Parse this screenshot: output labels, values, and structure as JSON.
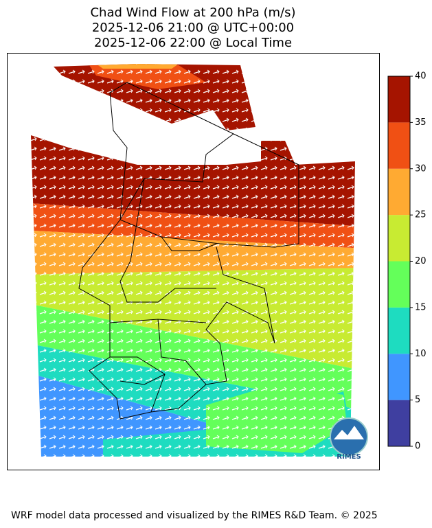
{
  "map": {
    "title": [
      "Chad Wind Flow at 200 hPa (m/s)",
      "2025-12-06 21:00 @ UTC+00:00",
      "2025-12-06 22:00 @ Local Time"
    ],
    "colorbar": {
      "levels": [
        0,
        5,
        10,
        15,
        20,
        25,
        30,
        35,
        40
      ],
      "colors": [
        "#3f3fa0",
        "#4096ff",
        "#1edcc0",
        "#64ff5a",
        "#c8eb32",
        "#ffaa32",
        "#f05014",
        "#a51400"
      ]
    },
    "logo": "RIMES",
    "footer": "WRF model data processed and visualized by the RIMES R&D Team. © 2025"
  }
}
